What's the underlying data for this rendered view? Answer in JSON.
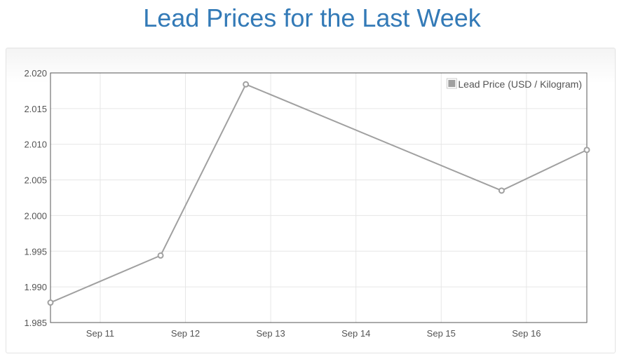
{
  "page": {
    "title": "Lead Prices for the Last Week"
  },
  "chart_data": {
    "type": "line",
    "title": "Lead Prices for the Last Week",
    "xlabel": "",
    "ylabel": "",
    "x_ticks": [
      "Sep 11",
      "Sep 12",
      "Sep 13",
      "Sep 14",
      "Sep 15",
      "Sep 16"
    ],
    "x_tick_dates": [
      "2023-09-11",
      "2023-09-12",
      "2023-09-13",
      "2023-09-14",
      "2023-09-15",
      "2023-09-16"
    ],
    "x_range": [
      "2023-09-10T10:00",
      "2023-09-16T17:00"
    ],
    "y_ticks": [
      "2.020",
      "2.015",
      "2.010",
      "2.005",
      "2.000",
      "1.995",
      "1.990",
      "1.985"
    ],
    "ylim": [
      1.985,
      2.02
    ],
    "grid": true,
    "legend_position": "top-right",
    "series": [
      {
        "name": "Lead Price (USD / Kilogram)",
        "color": "#a0a0a0",
        "points": [
          {
            "x": "2023-09-10T10:00",
            "y": 1.9878
          },
          {
            "x": "2023-09-11T17:00",
            "y": 1.9944
          },
          {
            "x": "2023-09-12T17:00",
            "y": 2.0184
          },
          {
            "x": "2023-09-15T17:00",
            "y": 2.0035
          },
          {
            "x": "2023-09-16T17:00",
            "y": 2.0092
          }
        ]
      }
    ]
  }
}
